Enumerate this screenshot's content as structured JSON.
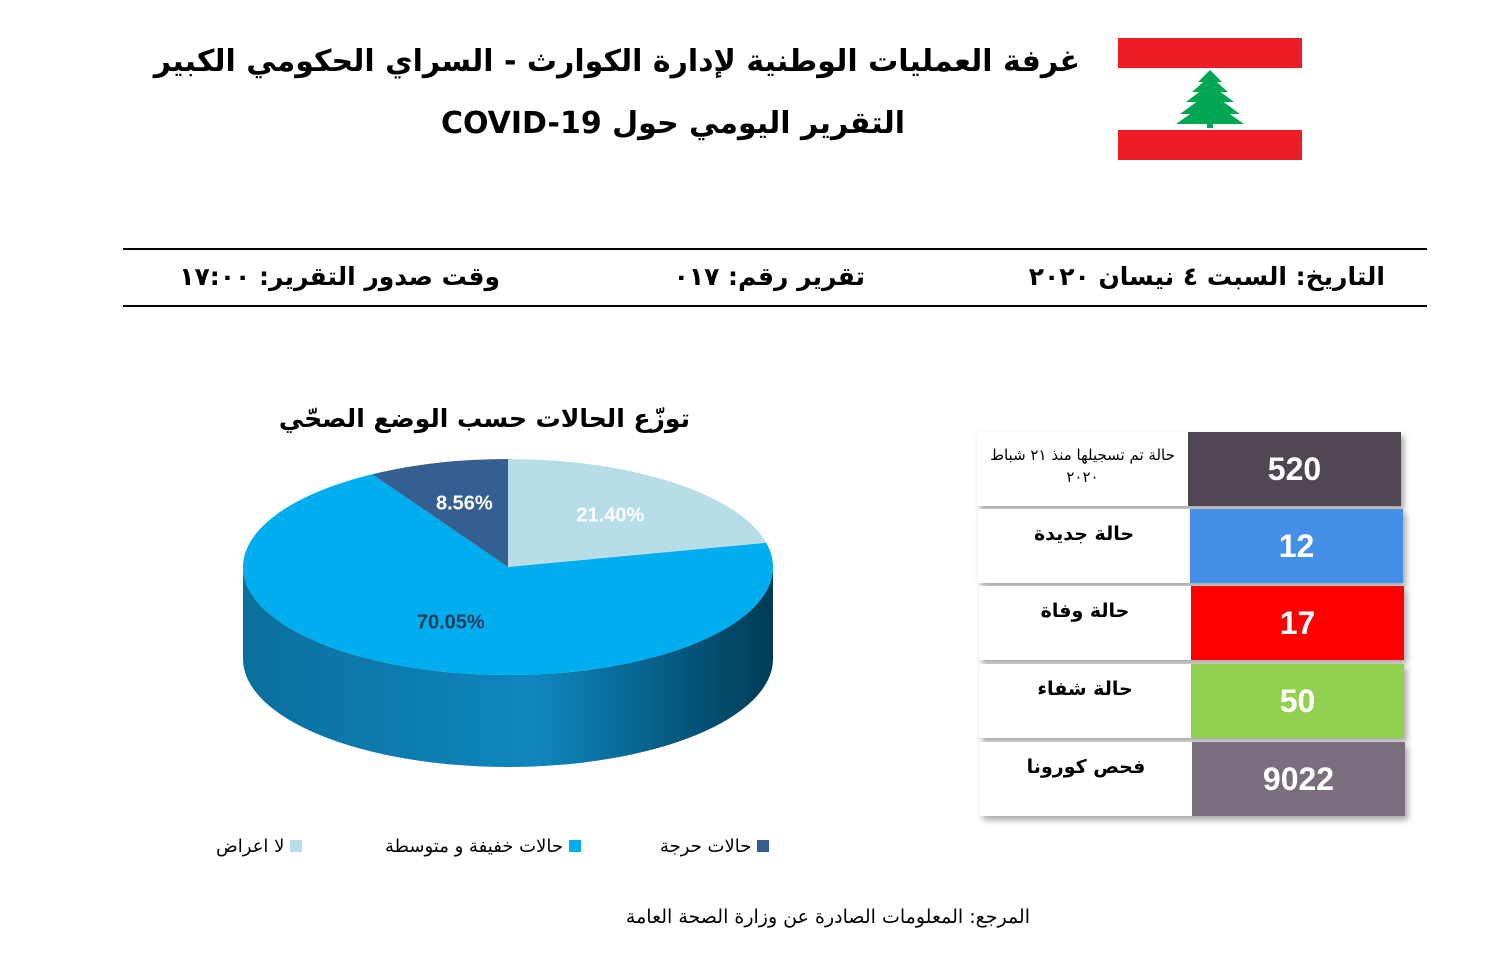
{
  "header": {
    "title_line1": "غرفة العمليات الوطنية لإدارة الكوارث - السراي الحكومي الكبير",
    "title_line2": "التقرير اليومي حول COVID-19",
    "colors": {
      "flag_red": "#ee1c25",
      "flag_green": "#00a651"
    }
  },
  "report_meta": {
    "date": "التاريخ: السبت ٤ نيسان ٢٠٢٠",
    "report_number": "تقرير رقم: ٠١٧",
    "issue_time": "وقت صدور التقرير: ١٧:٠٠"
  },
  "chart_data": {
    "type": "pie",
    "title": "توزّع الحالات حسب الوضع الصحّي",
    "categories": [
      "لا اعراض",
      "حالات خفيفة و متوسطة",
      "حالات حرجة"
    ],
    "values": [
      21.4,
      70.05,
      8.56
    ],
    "labels": [
      "21.40%",
      "70.05%",
      "8.56%"
    ],
    "colors": [
      "#b7dde8",
      "#00aeef",
      "#365f91"
    ],
    "legend_position": "bottom"
  },
  "stats": [
    {
      "label": "حالة تم تسجيلها منذ ٢١ شباط ٢٠٢٠",
      "value": "520",
      "color": "#4f4553"
    },
    {
      "label": "حالة جديدة",
      "value": "12",
      "color": "#468fe8"
    },
    {
      "label": "حالة وفاة",
      "value": "17",
      "color": "#ff0000"
    },
    {
      "label": "حالة شفاء",
      "value": "50",
      "color": "#92d050"
    },
    {
      "label": "فحص كورونا",
      "value": "9022",
      "color": "#7a6d7d"
    }
  ],
  "footer": {
    "source": "المرجع: المعلومات الصادرة عن وزارة الصحة العامة"
  }
}
